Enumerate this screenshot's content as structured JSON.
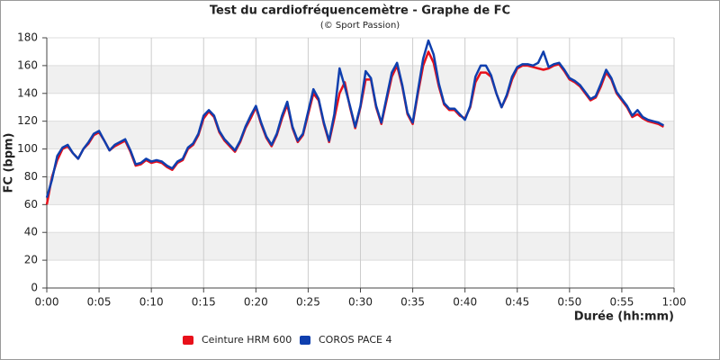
{
  "chart_data": {
    "type": "line",
    "title": "Test du cardiofréquencemètre - Graphe de FC",
    "subtitle": "(© Sport Passion)",
    "y_label": "FC (bpm)",
    "x_label": "Durée (hh:mm)",
    "x": [
      0,
      0.5,
      1,
      1.5,
      2,
      2.5,
      3,
      3.5,
      4,
      4.5,
      5,
      5.5,
      6,
      6.5,
      7,
      7.5,
      8,
      8.5,
      9,
      9.5,
      10,
      10.5,
      11,
      11.5,
      12,
      12.5,
      13,
      13.5,
      14,
      14.5,
      15,
      15.5,
      16,
      16.5,
      17,
      17.5,
      18,
      18.5,
      19,
      19.5,
      20,
      20.5,
      21,
      21.5,
      22,
      22.5,
      23,
      23.5,
      24,
      24.5,
      25,
      25.5,
      26,
      26.5,
      27,
      27.5,
      28,
      28.5,
      29,
      29.5,
      30,
      30.5,
      31,
      31.5,
      32,
      32.5,
      33,
      33.5,
      34,
      34.5,
      35,
      35.5,
      36,
      36.5,
      37,
      37.5,
      38,
      38.5,
      39,
      39.5,
      40,
      40.5,
      41,
      41.5,
      42,
      42.5,
      43,
      43.5,
      44,
      44.5,
      45,
      45.5,
      46,
      46.5,
      47,
      47.5,
      48,
      48.5,
      49,
      49.5,
      50,
      50.5,
      51,
      51.5,
      52,
      52.5,
      53,
      53.5,
      54,
      54.5,
      55,
      55.5,
      56,
      56.5,
      57,
      57.5,
      58,
      58.5,
      59
    ],
    "series": [
      {
        "name": "Ceinture HRM 600",
        "color": "#e8101a",
        "values": [
          60,
          80,
          92,
          100,
          102,
          97,
          93,
          100,
          104,
          110,
          112,
          106,
          99,
          102,
          104,
          106,
          98,
          88,
          89,
          92,
          90,
          91,
          90,
          87,
          85,
          90,
          92,
          100,
          103,
          110,
          122,
          127,
          123,
          112,
          106,
          102,
          98,
          105,
          115,
          122,
          130,
          118,
          108,
          102,
          110,
          122,
          132,
          115,
          105,
          110,
          125,
          140,
          135,
          118,
          105,
          122,
          140,
          148,
          130,
          115,
          130,
          150,
          150,
          130,
          118,
          135,
          152,
          160,
          145,
          125,
          118,
          140,
          160,
          170,
          162,
          145,
          132,
          128,
          128,
          124,
          122,
          130,
          148,
          155,
          155,
          152,
          140,
          130,
          138,
          150,
          158,
          160,
          160,
          159,
          158,
          157,
          158,
          160,
          161,
          156,
          150,
          148,
          145,
          140,
          135,
          137,
          145,
          155,
          150,
          140,
          135,
          130,
          123,
          125,
          122,
          120,
          119,
          118,
          116
        ]
      },
      {
        "name": "COROS PACE 4",
        "color": "#0f3fae",
        "values": [
          65,
          78,
          95,
          101,
          103,
          97,
          93,
          100,
          105,
          111,
          113,
          106,
          99,
          103,
          105,
          107,
          99,
          89,
          90,
          93,
          91,
          92,
          91,
          88,
          86,
          91,
          93,
          101,
          104,
          111,
          124,
          128,
          124,
          113,
          107,
          103,
          99,
          106,
          116,
          124,
          131,
          119,
          109,
          103,
          111,
          124,
          134,
          116,
          106,
          111,
          127,
          143,
          136,
          119,
          106,
          125,
          158,
          145,
          131,
          116,
          131,
          156,
          151,
          131,
          119,
          137,
          155,
          162,
          146,
          126,
          119,
          142,
          165,
          178,
          168,
          147,
          133,
          129,
          129,
          125,
          121,
          131,
          152,
          160,
          160,
          153,
          140,
          130,
          139,
          152,
          159,
          161,
          161,
          160,
          162,
          170,
          159,
          161,
          162,
          157,
          151,
          149,
          146,
          141,
          136,
          138,
          147,
          157,
          151,
          141,
          136,
          131,
          124,
          128,
          123,
          121,
          120,
          119,
          117
        ]
      }
    ],
    "xlim": [
      0,
      60
    ],
    "xticks": [
      {
        "value": 0,
        "label": "0:00"
      },
      {
        "value": 5,
        "label": "0:05"
      },
      {
        "value": 10,
        "label": "0:10"
      },
      {
        "value": 15,
        "label": "0:15"
      },
      {
        "value": 20,
        "label": "0:20"
      },
      {
        "value": 25,
        "label": "0:25"
      },
      {
        "value": 30,
        "label": "0:30"
      },
      {
        "value": 35,
        "label": "0:35"
      },
      {
        "value": 40,
        "label": "0:40"
      },
      {
        "value": 45,
        "label": "0:45"
      },
      {
        "value": 50,
        "label": "0:50"
      },
      {
        "value": 55,
        "label": "0:55"
      },
      {
        "value": 60,
        "label": "1:00"
      }
    ],
    "ylim": [
      0,
      180
    ],
    "yticks": [
      0,
      20,
      40,
      60,
      80,
      100,
      120,
      140,
      160,
      180
    ],
    "grid": true,
    "alternate_bands": true,
    "legend": "bottom"
  }
}
